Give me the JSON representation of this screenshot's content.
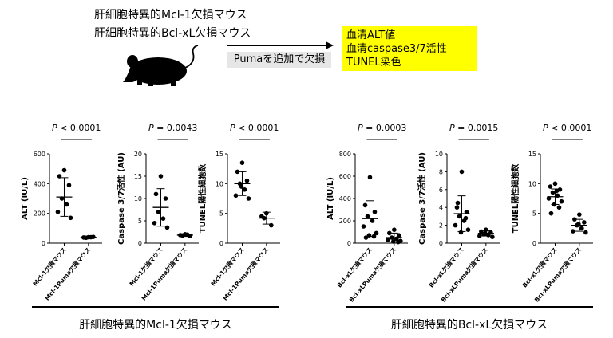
{
  "header": {
    "mouse_line1": "肝細胞特異的Mcl-1欠損マウス",
    "mouse_line2": "肝細胞特異的Bcl-xL欠損マウス",
    "arrow_label": "Pumaを追加で欠損",
    "readouts": [
      "血清ALT値",
      "血清caspase3/7活性",
      "TUNEL染色"
    ]
  },
  "groups": {
    "left_label": "肝細胞特異的Mcl-1欠損マウス",
    "right_label": "肝細胞特異的Bcl-xL欠損マウス"
  },
  "chart_data": [
    {
      "type": "scatter",
      "ylabel": "ALT (IU/L)",
      "ylim": [
        0,
        600
      ],
      "yticks": [
        0,
        200,
        400,
        600
      ],
      "categories": [
        "Mcl-1欠損マウス",
        "Mcl-1Puma欠損マウス"
      ],
      "series": [
        {
          "points": [
            490,
            450,
            390,
            300,
            260,
            210,
            170
          ],
          "mean": 310,
          "sd": 130
        },
        {
          "points": [
            40,
            38,
            42,
            36,
            40
          ],
          "mean": 39,
          "sd": 3
        }
      ],
      "p_value": "0.0001",
      "p_prefix": "P",
      "p_op": " < "
    },
    {
      "type": "scatter",
      "ylabel": "Caspase 3/7活性 (AU)",
      "ylim": [
        0,
        20
      ],
      "yticks": [
        0,
        5,
        10,
        15,
        20
      ],
      "categories": [
        "Mcl-1欠損マウス",
        "Mcl-1Puma欠損マウス"
      ],
      "series": [
        {
          "points": [
            15,
            11,
            10,
            7,
            5.5,
            4.5,
            3.5
          ],
          "mean": 8,
          "sd": 4.2
        },
        {
          "points": [
            2.0,
            1.8,
            1.6,
            1.7,
            1.9
          ],
          "mean": 1.8,
          "sd": 0.3
        }
      ],
      "p_value": "0.0043",
      "p_prefix": "P",
      "p_op": " = "
    },
    {
      "type": "scatter",
      "ylabel": "TUNEL陽性細胞数",
      "ylim": [
        0,
        15
      ],
      "yticks": [
        0,
        5,
        10,
        15
      ],
      "categories": [
        "Mcl-1欠損マウス",
        "Mcl-1Puma欠損マウス"
      ],
      "series": [
        {
          "points": [
            13.5,
            12,
            10.5,
            10,
            9,
            8,
            7.5,
            9.5
          ],
          "mean": 10,
          "sd": 2
        },
        {
          "points": [
            5,
            4.5,
            3,
            4.2
          ],
          "mean": 4.2,
          "sd": 1
        }
      ],
      "p_value": "0.0001",
      "p_prefix": "P",
      "p_op": " < "
    },
    {
      "type": "scatter",
      "ylabel": "ALT (IU/L)",
      "ylim": [
        0,
        800
      ],
      "yticks": [
        0,
        200,
        400,
        600,
        800
      ],
      "categories": [
        "Bcl-xL欠損マウス",
        "Bcl-xLPuma欠損マウス"
      ],
      "series": [
        {
          "points": [
            590,
            340,
            280,
            240,
            200,
            150,
            90,
            70,
            60,
            50
          ],
          "mean": 220,
          "sd": 160
        },
        {
          "points": [
            120,
            90,
            70,
            50,
            40,
            30,
            20,
            15,
            10
          ],
          "mean": 50,
          "sd": 40
        }
      ],
      "p_value": "0.0003",
      "p_prefix": "P",
      "p_op": " = "
    },
    {
      "type": "scatter",
      "ylabel": "Caspase 3/7活性 (AU)",
      "ylim": [
        0,
        10
      ],
      "yticks": [
        0,
        2,
        4,
        6,
        8,
        10
      ],
      "categories": [
        "Bcl-xL欠損マウス",
        "Bcl-xLPuma欠損マウス"
      ],
      "series": [
        {
          "points": [
            8,
            4,
            3.5,
            3,
            2.5,
            2,
            1.5,
            1.2,
            2.8,
            4.5
          ],
          "mean": 3.3,
          "sd": 2
        },
        {
          "points": [
            1.5,
            1.3,
            1.2,
            1.0,
            0.9,
            0.8,
            0.7,
            1.1
          ],
          "mean": 1.1,
          "sd": 0.3
        }
      ],
      "p_value": "0.0015",
      "p_prefix": "P",
      "p_op": " = "
    },
    {
      "type": "scatter",
      "ylabel": "TUNEL陽性細胞数",
      "ylim": [
        0,
        15
      ],
      "yticks": [
        0,
        5,
        10,
        15
      ],
      "categories": [
        "Bcl-xL欠損マウス",
        "Bcl-xLPuma欠損マウス"
      ],
      "series": [
        {
          "points": [
            10,
            9.5,
            9,
            8.5,
            8,
            7.5,
            7,
            6.5,
            6,
            5,
            8.8
          ],
          "mean": 7.8,
          "sd": 1.3
        },
        {
          "points": [
            4.8,
            4,
            3.5,
            3,
            2.5,
            2,
            1.8,
            3.2
          ],
          "mean": 3,
          "sd": 1
        }
      ],
      "p_value": "0.0001",
      "p_prefix": "P",
      "p_op": " < "
    }
  ]
}
